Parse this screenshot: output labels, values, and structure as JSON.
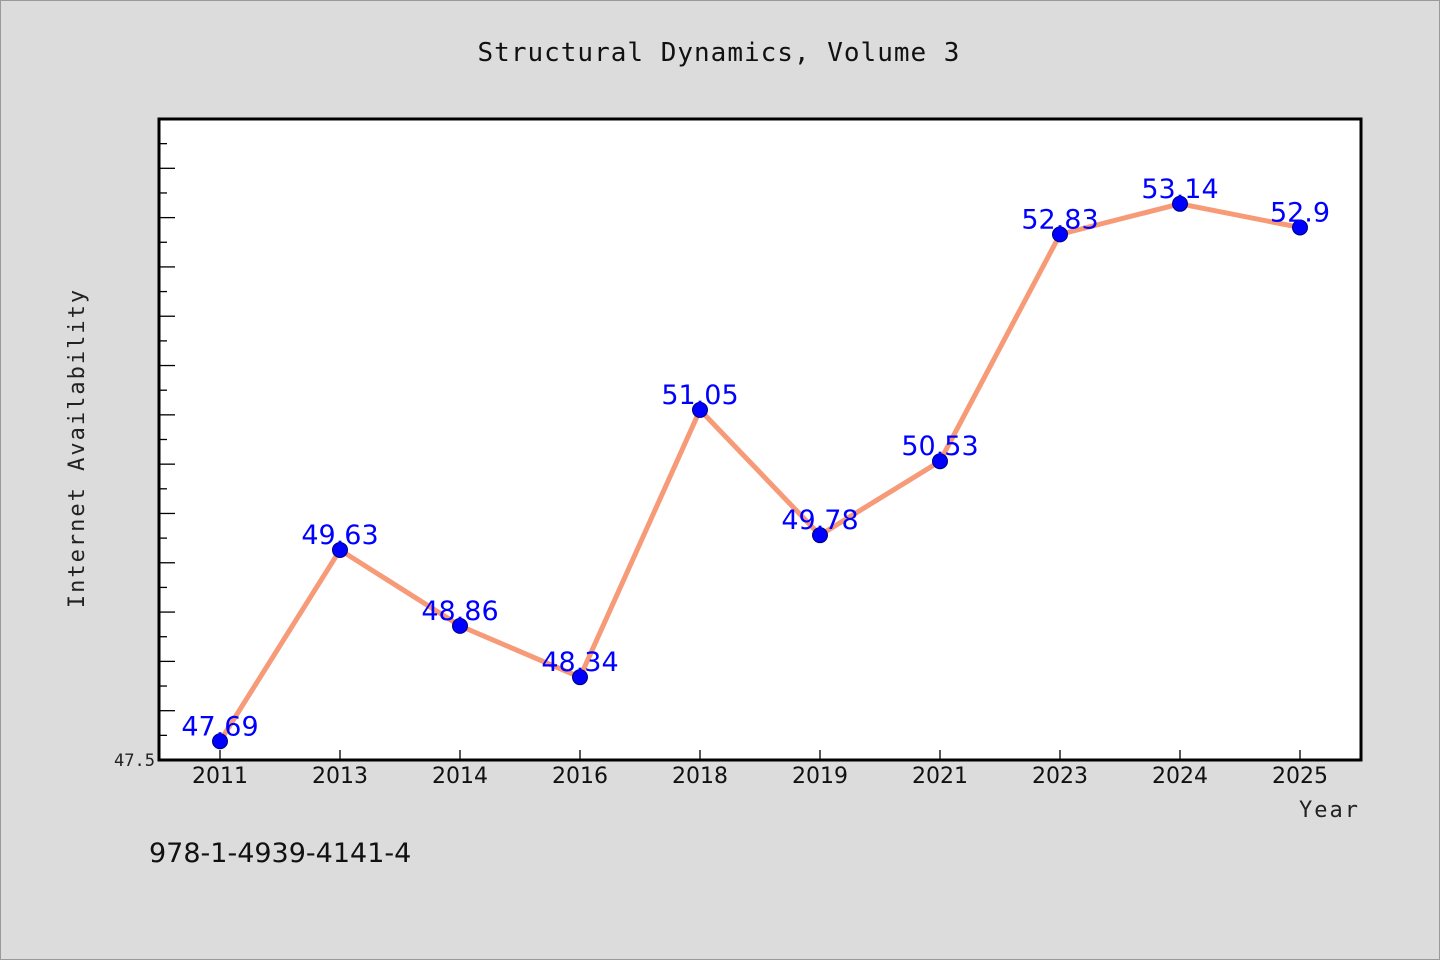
{
  "title": "Structural Dynamics, Volume 3",
  "footer_text": "978-1-4939-4141-4",
  "colors": {
    "background": "#dcdcdc",
    "plot_background": "#ffffff",
    "line": "#f79a78",
    "marker": "#0000ff",
    "data_label": "#0000ff"
  },
  "chart_data": {
    "type": "line",
    "title": "Structural Dynamics, Volume 3",
    "xlabel": "Year",
    "ylabel": "Internet Availability",
    "categories": [
      "2011",
      "2013",
      "2014",
      "2016",
      "2018",
      "2019",
      "2021",
      "2023",
      "2024",
      "2025"
    ],
    "series": [
      {
        "values": [
          47.69,
          49.63,
          48.86,
          48.34,
          51.05,
          49.78,
          50.53,
          52.83,
          53.14,
          52.9
        ]
      }
    ],
    "y_tick_labels": [
      "47.5"
    ],
    "ylim": [
      47.5,
      54.0
    ],
    "grid": false,
    "legend": "none",
    "data_labels": true
  }
}
